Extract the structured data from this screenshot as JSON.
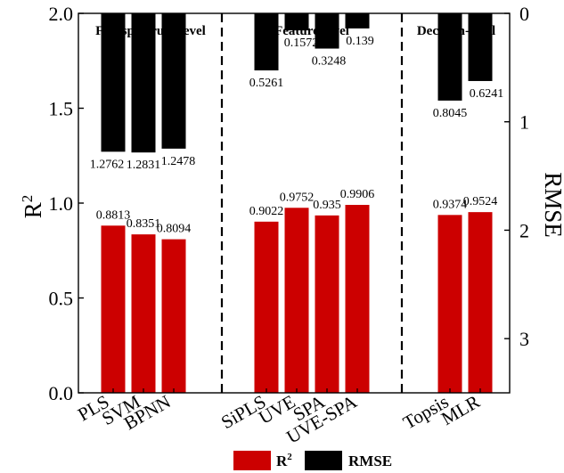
{
  "chart_data": {
    "type": "bar",
    "categories": [
      "PLS",
      "SVM",
      "BPNN",
      "SiPLS",
      "UVE",
      "SPA",
      "UVE-SPA",
      "Topsis",
      "MLR"
    ],
    "groups": [
      {
        "name": "Full spectrum-level",
        "categories": [
          "PLS",
          "SVM",
          "BPNN"
        ]
      },
      {
        "name": "Feature-level",
        "categories": [
          "SiPLS",
          "UVE",
          "SPA",
          "UVE-SPA"
        ]
      },
      {
        "name": "Decision-level",
        "categories": [
          "Topsis",
          "MLR"
        ]
      }
    ],
    "series": [
      {
        "name": "R²",
        "axis": "left",
        "color": "#cc0000",
        "values": [
          0.8813,
          0.8351,
          0.8094,
          0.9022,
          0.9752,
          0.935,
          0.9906,
          0.9374,
          0.9524
        ],
        "labels": [
          "0.8813",
          "0.8351",
          "0.8094",
          "0.9022",
          "0.9752",
          "0.935",
          "0.9906",
          "0.9374",
          "0.9524"
        ]
      },
      {
        "name": "RMSE",
        "axis": "right-inverted",
        "color": "#000000",
        "values": [
          1.2762,
          1.2831,
          1.2478,
          0.5261,
          0.1572,
          0.3248,
          0.139,
          0.8045,
          0.6241
        ],
        "labels": [
          "1.2762",
          "1.2831",
          "1.2478",
          "0.5261",
          "0.1572",
          "0.3248",
          "0.139",
          "0.8045",
          "0.6241"
        ]
      }
    ],
    "y_left": {
      "label": "R",
      "label_sup": "2",
      "range": [
        0,
        2.0
      ],
      "ticks": [
        "0.0",
        "0.5",
        "1.0",
        "1.5",
        "2.0"
      ]
    },
    "y_right": {
      "label": "RMSE",
      "range": [
        0,
        3.5
      ],
      "inverted": true,
      "ticks": [
        "0",
        "1",
        "2",
        "3"
      ]
    },
    "legend": {
      "position": "bottom-center",
      "items": [
        {
          "label": "R",
          "sup": "2",
          "color": "#cc0000"
        },
        {
          "label": "RMSE",
          "color": "#000000"
        }
      ]
    },
    "grid": false
  }
}
